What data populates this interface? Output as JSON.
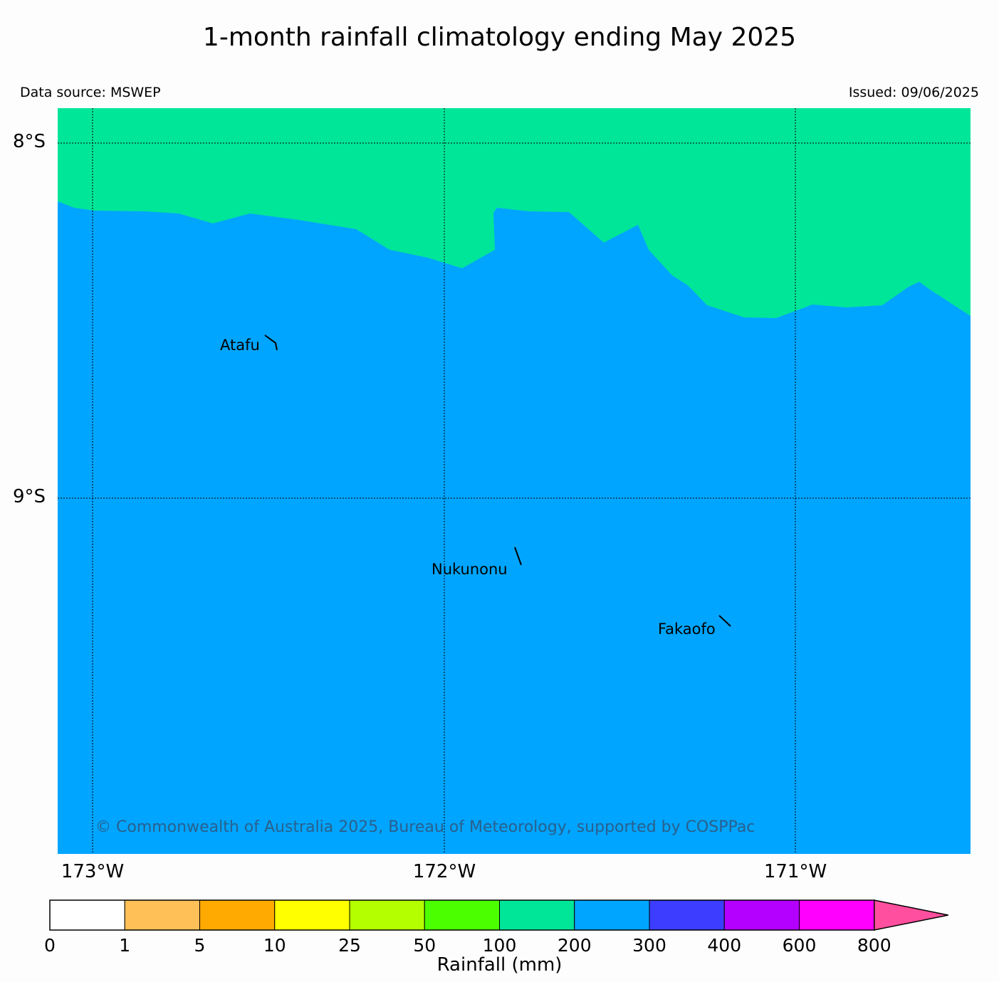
{
  "title": "1-month rainfall climatology ending May 2025",
  "data_source": "Data source: MSWEP",
  "issued": "Issued: 09/06/2025",
  "copyright": "© Commonwealth of Australia 2025, Bureau of Meteorology, supported by COSPPac",
  "map": {
    "background_color": "#00a5ff",
    "northern_region_color": "#00e699",
    "northern_region_range": "100-200",
    "dominant_range": "200-300",
    "grid": true,
    "lat_labels": [
      "8°S",
      "9°S"
    ],
    "lon_labels": [
      "173°W",
      "172°W",
      "171°W"
    ],
    "places": [
      "Atafu",
      "Nukunonu",
      "Fakaofo"
    ]
  },
  "colorbar": {
    "label": "Rainfall (mm)",
    "ticks": [
      "0",
      "1",
      "5",
      "10",
      "25",
      "50",
      "100",
      "200",
      "300",
      "400",
      "600",
      "800"
    ],
    "colors": [
      "#ffffff",
      "#ffc057",
      "#ffaa00",
      "#ffff00",
      "#b4ff00",
      "#4cff00",
      "#00e699",
      "#00a5ff",
      "#3d3dff",
      "#b300ff",
      "#ff00ff",
      "#ff4f9e"
    ],
    "extend": "max"
  }
}
